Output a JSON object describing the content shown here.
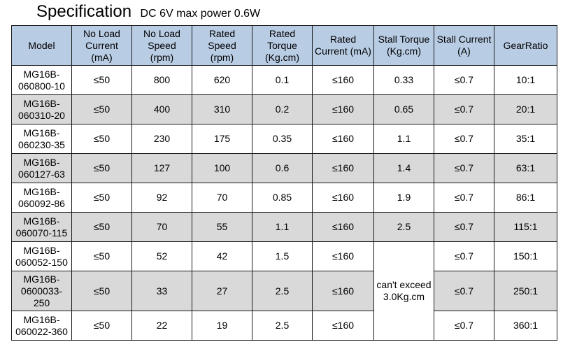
{
  "title": "Specification",
  "subtitle": "DC 6V max power 0.6W",
  "columns": [
    [
      "Model"
    ],
    [
      "No Load",
      "Current",
      "(mA)"
    ],
    [
      "No Load",
      "Speed",
      "(rpm)"
    ],
    [
      "Rated",
      "Speed",
      "(rpm)"
    ],
    [
      "Rated",
      "Torque",
      "(Kg.cm)"
    ],
    [
      "Rated",
      "Current (mA)"
    ],
    [
      "Stall Torque",
      "(Kg.cm)"
    ],
    [
      "Stall Current",
      "(A)"
    ],
    [
      "GearRatio"
    ]
  ],
  "rows": [
    {
      "model": [
        "MG16B-",
        "060800-10"
      ],
      "no_load_current": "≤50",
      "no_load_speed": "800",
      "rated_speed": "620",
      "rated_torque": "0.1",
      "rated_current": "≤160",
      "stall_torque": "0.33",
      "stall_current": "≤0.7",
      "gear_ratio": "10:1"
    },
    {
      "model": [
        "MG16B-",
        "060310-20"
      ],
      "no_load_current": "≤50",
      "no_load_speed": "400",
      "rated_speed": "310",
      "rated_torque": "0.2",
      "rated_current": "≤160",
      "stall_torque": "0.65",
      "stall_current": "≤0.7",
      "gear_ratio": "20:1"
    },
    {
      "model": [
        "MG16B-",
        "060230-35"
      ],
      "no_load_current": "≤50",
      "no_load_speed": "230",
      "rated_speed": "175",
      "rated_torque": "0.35",
      "rated_current": "≤160",
      "stall_torque": "1.1",
      "stall_current": "≤0.7",
      "gear_ratio": "35:1"
    },
    {
      "model": [
        "MG16B-",
        "060127-63"
      ],
      "no_load_current": "≤50",
      "no_load_speed": "127",
      "rated_speed": "100",
      "rated_torque": "0.6",
      "rated_current": "≤160",
      "stall_torque": "1.4",
      "stall_current": "≤0.7",
      "gear_ratio": "63:1"
    },
    {
      "model": [
        "MG16B-",
        "060092-86"
      ],
      "no_load_current": "≤50",
      "no_load_speed": "92",
      "rated_speed": "70",
      "rated_torque": "0.85",
      "rated_current": "≤160",
      "stall_torque": "1.9",
      "stall_current": "≤0.7",
      "gear_ratio": "86:1"
    },
    {
      "model": [
        "MG16B-",
        "060070-115"
      ],
      "no_load_current": "≤50",
      "no_load_speed": "70",
      "rated_speed": "55",
      "rated_torque": "1.1",
      "rated_current": "≤160",
      "stall_torque": "2.5",
      "stall_current": "≤0.7",
      "gear_ratio": "115:1"
    },
    {
      "model": [
        "MG16B-",
        "060052-150"
      ],
      "no_load_current": "≤50",
      "no_load_speed": "52",
      "rated_speed": "42",
      "rated_torque": "1.5",
      "rated_current": "≤160",
      "stall_current": "≤0.7",
      "gear_ratio": "150:1"
    },
    {
      "model": [
        "MG16B-",
        "0600033-",
        "250"
      ],
      "no_load_current": "≤50",
      "no_load_speed": "33",
      "rated_speed": "27",
      "rated_torque": "2.5",
      "rated_current": "≤160",
      "stall_current": "≤0.7",
      "gear_ratio": "250:1"
    },
    {
      "model": [
        "MG16B-",
        "060022-360"
      ],
      "no_load_current": "≤50",
      "no_load_speed": "22",
      "rated_speed": "19",
      "rated_torque": "2.5",
      "rated_current": "≤160",
      "stall_current": "≤0.7",
      "gear_ratio": "360:1"
    }
  ],
  "merged_stall_torque": [
    "can't exceed",
    "3.0Kg.cm"
  ]
}
